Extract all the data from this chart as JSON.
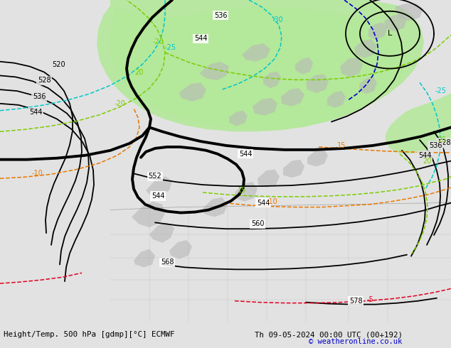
{
  "title_left": "Height/Temp. 500 hPa [gdmp][°C] ECMWF",
  "title_right": "Th 09-05-2024 00:00 UTC (00+192)",
  "copyright": "© weatheronline.co.uk",
  "bg_color": "#e2e2e2",
  "map_bg": "#e2e2e2",
  "green_color": "#b4e89a",
  "gray_land": "#b8b8b8",
  "copyright_color": "#0000cc",
  "black": "#000000",
  "cyan": "#00c8c8",
  "lime": "#7ccc00",
  "orange": "#e87800",
  "red": "#e00020",
  "blue": "#0000cc"
}
